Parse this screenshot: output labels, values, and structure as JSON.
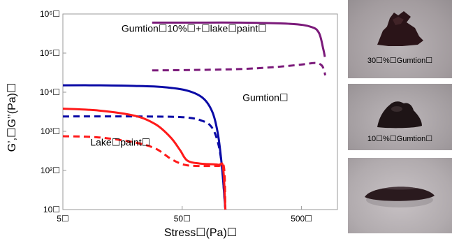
{
  "chart_data": {
    "type": "line",
    "xscale": "log",
    "yscale": "log",
    "xlim": [
      5,
      1000
    ],
    "ylim": [
      10,
      1000000
    ],
    "xlabel": "Stress☐(Pa)☐",
    "ylabel": "G’,☐G’’(Pa)☐",
    "x_tick_labels": [
      "5☐",
      "50☐",
      "500☐"
    ],
    "y_tick_labels": [
      "10☐",
      "10²☐",
      "10³☐",
      "10⁴☐",
      "10⁵☐",
      "10⁶☐"
    ],
    "grid": false,
    "annotations": [
      {
        "text": "Gumtion☐10%☐+☐lake☐paint☐",
        "series": "gumtion10_lake"
      },
      {
        "text": "Gumtion☐",
        "series": "gumtion"
      },
      {
        "text": "Lake☐paint☐",
        "series": "lake"
      }
    ],
    "series": [
      {
        "key": "gumtion10_lake",
        "modulus": "G'",
        "style": "solid",
        "color": "#7b1a7a",
        "points": [
          [
            28,
            600000
          ],
          [
            60,
            600000
          ],
          [
            150,
            600000
          ],
          [
            400,
            560000
          ],
          [
            600,
            470000
          ],
          [
            700,
            330000
          ],
          [
            760,
            130000
          ],
          [
            785,
            80000
          ]
        ]
      },
      {
        "key": "gumtion10_lake",
        "modulus": "G''",
        "style": "dashed",
        "color": "#7b1a7a",
        "points": [
          [
            28,
            36000
          ],
          [
            60,
            37000
          ],
          [
            150,
            39000
          ],
          [
            300,
            44000
          ],
          [
            500,
            51000
          ],
          [
            650,
            56000
          ],
          [
            730,
            50000
          ],
          [
            770,
            38000
          ],
          [
            790,
            27000
          ]
        ]
      },
      {
        "key": "gumtion",
        "modulus": "G'",
        "style": "solid",
        "color": "#0a0aa6",
        "points": [
          [
            5,
            15000
          ],
          [
            10,
            15000
          ],
          [
            20,
            14500
          ],
          [
            35,
            13500
          ],
          [
            55,
            11000
          ],
          [
            75,
            7000
          ],
          [
            90,
            3000
          ],
          [
            100,
            800
          ],
          [
            107,
            150
          ],
          [
            112,
            30
          ],
          [
            115,
            10
          ]
        ]
      },
      {
        "key": "gumtion",
        "modulus": "G''",
        "style": "dashed",
        "color": "#0a0aa6",
        "points": [
          [
            5,
            2400
          ],
          [
            20,
            2400
          ],
          [
            50,
            2300
          ],
          [
            72,
            1900
          ],
          [
            88,
            1300
          ],
          [
            100,
            500
          ],
          [
            108,
            120
          ],
          [
            113,
            20
          ],
          [
            115,
            10
          ]
        ]
      },
      {
        "key": "lake",
        "modulus": "G'",
        "style": "solid",
        "color": "#ff1a1a",
        "points": [
          [
            5,
            3800
          ],
          [
            10,
            3400
          ],
          [
            20,
            2500
          ],
          [
            30,
            1500
          ],
          [
            40,
            700
          ],
          [
            48,
            330
          ],
          [
            55,
            180
          ],
          [
            70,
            150
          ],
          [
            100,
            140
          ],
          [
            110,
            120
          ],
          [
            115,
            10
          ]
        ]
      },
      {
        "key": "lake",
        "modulus": "G''",
        "style": "dashed",
        "color": "#ff1a1a",
        "points": [
          [
            5,
            750
          ],
          [
            10,
            700
          ],
          [
            20,
            520
          ],
          [
            30,
            360
          ],
          [
            40,
            200
          ],
          [
            52,
            140
          ],
          [
            70,
            130
          ],
          [
            100,
            130
          ],
          [
            112,
            120
          ],
          [
            115,
            10
          ]
        ]
      }
    ]
  },
  "photos": [
    {
      "caption": "30☐%☐Gumtion☐"
    },
    {
      "caption": "10☐%☐Gumtion☐"
    },
    {
      "caption": ""
    }
  ]
}
